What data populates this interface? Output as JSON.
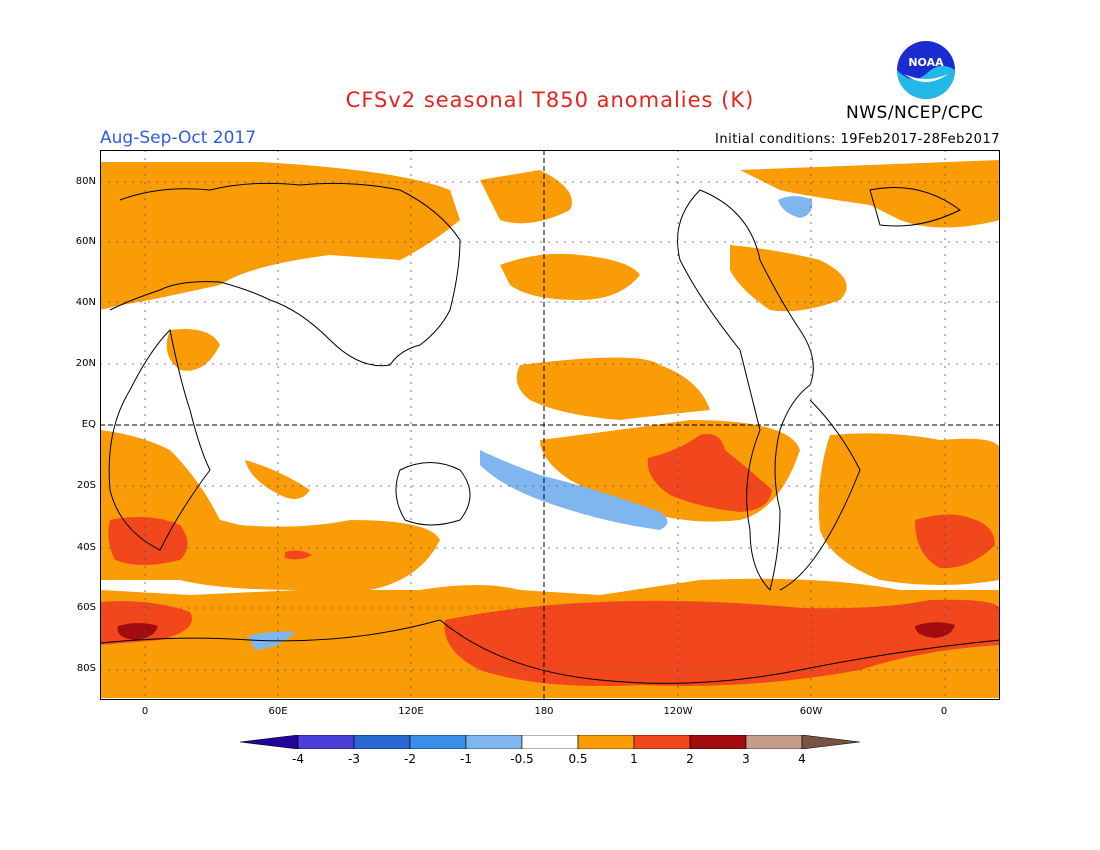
{
  "title": "CFSv2 seasonal T850 anomalies (K)",
  "subtitle": "Aug-Sep-Oct 2017",
  "initial_conditions": "Initial conditions: 19Feb2017-28Feb2017",
  "agency": "NWS/NCEP/CPC",
  "logo_text": "NOAA",
  "lat_labels": [
    "80N",
    "60N",
    "40N",
    "20N",
    "EQ",
    "20S",
    "40S",
    "60S",
    "80S"
  ],
  "lon_labels": [
    "0",
    "60E",
    "120E",
    "180",
    "120W",
    "60W",
    "0"
  ],
  "colorbar": {
    "labels": [
      "-4",
      "-3",
      "-2",
      "-1",
      "-0.5",
      "0.5",
      "1",
      "2",
      "3",
      "4"
    ],
    "colors": [
      "#22059a",
      "#4b3fd9",
      "#2a69d4",
      "#3a8ee8",
      "#7fb6f0",
      "#ffffff",
      "#f99c06",
      "#f2461c",
      "#a20c0e",
      "#c59b89",
      "#7a5343"
    ]
  },
  "anomaly_colors": {
    "above_0_5": "#f99c06",
    "above_1": "#f2461c",
    "above_2": "#a20c0e",
    "below_minus_0_5": "#7fb6f0"
  }
}
